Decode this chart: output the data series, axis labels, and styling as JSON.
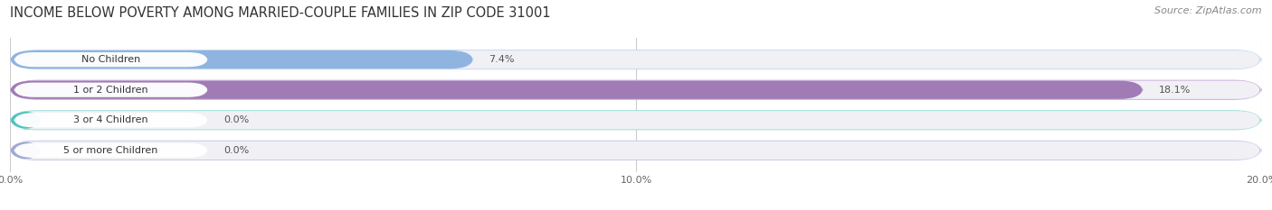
{
  "title": "INCOME BELOW POVERTY AMONG MARRIED-COUPLE FAMILIES IN ZIP CODE 31001",
  "source": "Source: ZipAtlas.com",
  "categories": [
    "No Children",
    "1 or 2 Children",
    "3 or 4 Children",
    "5 or more Children"
  ],
  "values": [
    7.4,
    18.1,
    0.0,
    0.0
  ],
  "display_values": [
    7.4,
    18.1,
    0.5,
    0.5
  ],
  "bar_colors": [
    "#8fb4e0",
    "#a07bb5",
    "#55c4c0",
    "#9fa8d5"
  ],
  "bar_shell_colors": [
    "#c5d8f0",
    "#c8aad8",
    "#99ddd8",
    "#c5c8e8"
  ],
  "bar_labels": [
    "7.4%",
    "18.1%",
    "0.0%",
    "0.0%"
  ],
  "xlim": [
    0,
    20.0
  ],
  "xticks": [
    0.0,
    10.0,
    20.0
  ],
  "xtick_labels": [
    "0.0%",
    "10.0%",
    "20.0%"
  ],
  "background_color": "#f5f5f5",
  "bar_bg_color": "#e8e8ee",
  "title_fontsize": 10.5,
  "source_fontsize": 8,
  "label_fontsize": 8,
  "value_fontsize": 8,
  "tick_fontsize": 8
}
